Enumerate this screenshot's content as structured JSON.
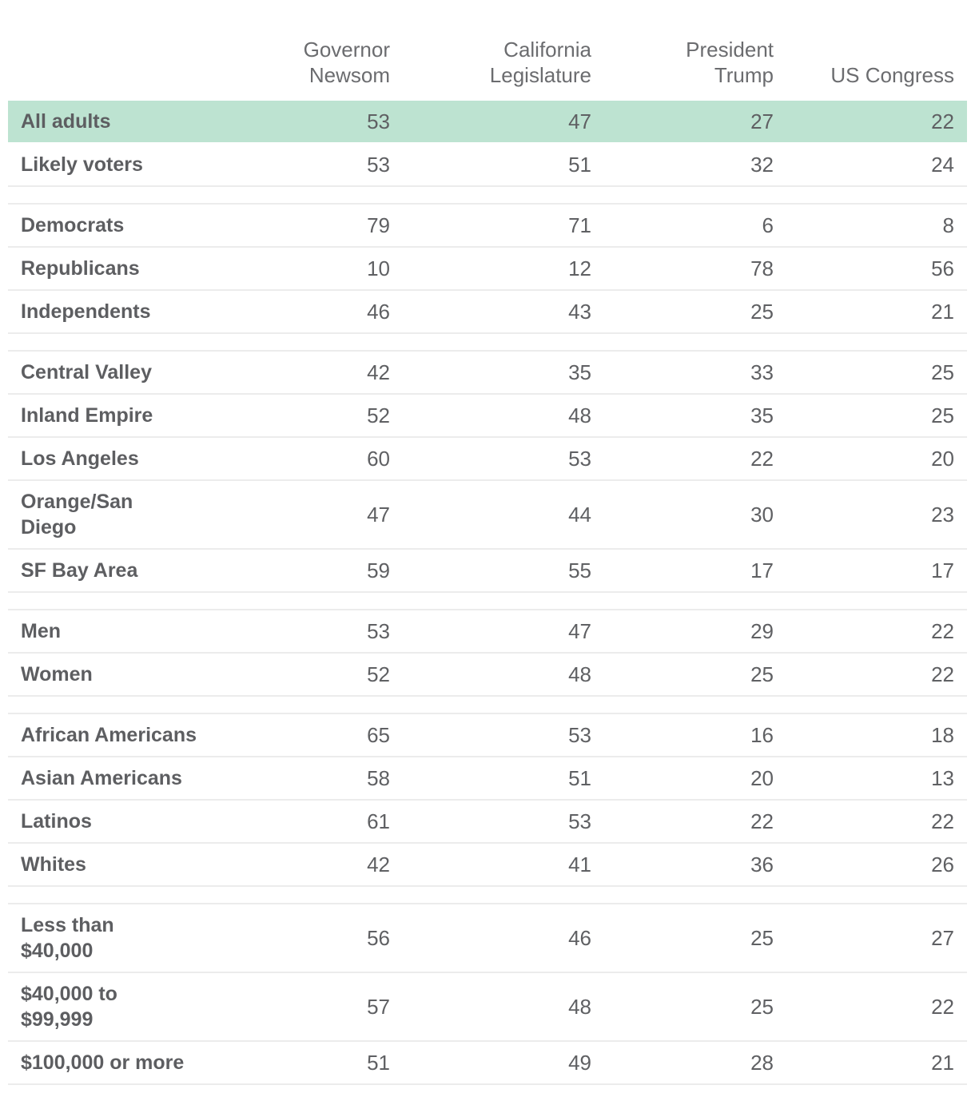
{
  "chart_data": {
    "type": "table",
    "columns": [
      "Governor\nNewsom",
      "California\nLegislature",
      "President\nTrump",
      "US Congress"
    ],
    "groups": [
      {
        "rows": [
          {
            "label": "All adults",
            "values": [
              "53",
              "47",
              "27",
              "22"
            ],
            "highlight": true
          },
          {
            "label": "Likely voters",
            "values": [
              "53",
              "51",
              "32",
              "24"
            ]
          }
        ]
      },
      {
        "rows": [
          {
            "label": "Democrats",
            "values": [
              "79",
              "71",
              "6",
              "8"
            ]
          },
          {
            "label": "Republicans",
            "values": [
              "10",
              "12",
              "78",
              "56"
            ]
          },
          {
            "label": "Independents",
            "values": [
              "46",
              "43",
              "25",
              "21"
            ]
          }
        ]
      },
      {
        "rows": [
          {
            "label": "Central Valley",
            "values": [
              "42",
              "35",
              "33",
              "25"
            ]
          },
          {
            "label": "Inland Empire",
            "values": [
              "52",
              "48",
              "35",
              "25"
            ]
          },
          {
            "label": "Los Angeles",
            "values": [
              "60",
              "53",
              "22",
              "20"
            ]
          },
          {
            "label": "Orange/San Diego",
            "values": [
              "47",
              "44",
              "30",
              "23"
            ],
            "tall": true
          },
          {
            "label": "SF Bay Area",
            "values": [
              "59",
              "55",
              "17",
              "17"
            ]
          }
        ]
      },
      {
        "rows": [
          {
            "label": "Men",
            "values": [
              "53",
              "47",
              "29",
              "22"
            ]
          },
          {
            "label": "Women",
            "values": [
              "52",
              "48",
              "25",
              "22"
            ]
          }
        ]
      },
      {
        "rows": [
          {
            "label": "African Americans",
            "values": [
              "65",
              "53",
              "16",
              "18"
            ]
          },
          {
            "label": "Asian Americans",
            "values": [
              "58",
              "51",
              "20",
              "13"
            ]
          },
          {
            "label": "Latinos",
            "values": [
              "61",
              "53",
              "22",
              "22"
            ]
          },
          {
            "label": "Whites",
            "values": [
              "42",
              "41",
              "36",
              "26"
            ]
          }
        ]
      },
      {
        "rows": [
          {
            "label": "Less than $40,000",
            "values": [
              "56",
              "46",
              "25",
              "27"
            ],
            "tall": true
          },
          {
            "label": "$40,000 to $99,999",
            "values": [
              "57",
              "48",
              "25",
              "22"
            ],
            "tall": true
          },
          {
            "label": "$100,000 or more",
            "values": [
              "51",
              "49",
              "28",
              "21"
            ]
          }
        ]
      }
    ],
    "colors": {
      "highlight": "#bde3d1",
      "text": "#5f6063",
      "rule": "#ececec"
    }
  }
}
